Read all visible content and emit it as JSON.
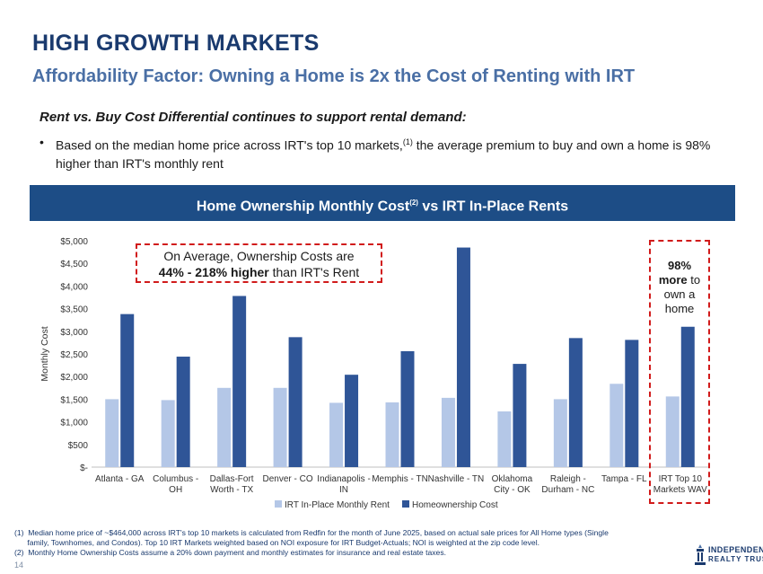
{
  "header": {
    "title": "HIGH GROWTH MARKETS",
    "subtitle": "Affordability Factor: Owning a Home is 2x the Cost of Renting with IRT"
  },
  "body": {
    "lead": "Rent vs. Buy Cost Differential continues to support rental demand:",
    "bullet_marker": "•",
    "bullet_part1": "Based on the median home price across IRT's top 10 markets,",
    "bullet_sup": "(1)",
    "bullet_part2": " the average premium to buy and own a home is 98% higher than IRT's monthly rent"
  },
  "banner": {
    "title_part1": "Home Ownership Monthly Cost",
    "title_sup": "(2)",
    "title_part2": " vs IRT In-Place Rents"
  },
  "callout": {
    "line1": "On Average, Ownership Costs are",
    "line2_bold": "44% - 218% higher",
    "line2_rest": " than IRT's Rent"
  },
  "highlight": {
    "pct": "98%",
    "more": "more",
    "to": " to",
    "rest1": "own a",
    "rest2": "home"
  },
  "colors": {
    "rent": "#b4c7e7",
    "ownership": "#2f5597",
    "accent_red": "#d11b1b",
    "banner": "#1d4d86"
  },
  "chart_data": {
    "type": "bar",
    "ylabel": "Monthly Cost",
    "ylim": [
      0,
      5000
    ],
    "ytick_values": [
      0,
      500,
      1000,
      1500,
      2000,
      2500,
      3000,
      3500,
      4000,
      4500,
      5000
    ],
    "ytick_labels": [
      "$-",
      "$500",
      "$1,000",
      "$1,500",
      "$2,000",
      "$2,500",
      "$3,000",
      "$3,500",
      "$4,000",
      "$4,500",
      "$5,000"
    ],
    "categories": [
      [
        "Atlanta - GA"
      ],
      [
        "Columbus -",
        "OH"
      ],
      [
        "Dallas-Fort",
        "Worth - TX"
      ],
      [
        "Denver - CO"
      ],
      [
        "Indianapolis -",
        "IN"
      ],
      [
        "Memphis - TN"
      ],
      [
        "Nashville - TN"
      ],
      [
        "Oklahoma",
        "City - OK"
      ],
      [
        "Raleigh -",
        "Durham - NC"
      ],
      [
        "Tampa - FL"
      ],
      [
        "IRT Top 10",
        "Markets WAV"
      ]
    ],
    "series": [
      {
        "name": "IRT In-Place Monthly Rent",
        "values": [
          1500,
          1480,
          1750,
          1750,
          1420,
          1430,
          1530,
          1230,
          1500,
          1840,
          1560
        ]
      },
      {
        "name": "Homeownership Cost",
        "values": [
          3380,
          2440,
          3780,
          2870,
          2040,
          2560,
          4850,
          2280,
          2850,
          2810,
          3100
        ]
      }
    ]
  },
  "footnotes": [
    "(1)  Median home price of ~$464,000 across IRT's top 10 markets is calculated from Redfin for the month of June 2025, based on actual sale prices for All Home types (Single",
    "      family, Townhomes, and Condos). Top 10 IRT Markets weighted based on NOI exposure for IRT Budget-Actuals; NOI is weighted at the zip code level.",
    "(2)  Monthly Home Ownership Costs assume a 20% down payment and monthly estimates for insurance and real estate taxes."
  ],
  "page_number": "14",
  "logo": {
    "line1": "INDEPENDENCE",
    "line2": "REALTY TRUST"
  }
}
